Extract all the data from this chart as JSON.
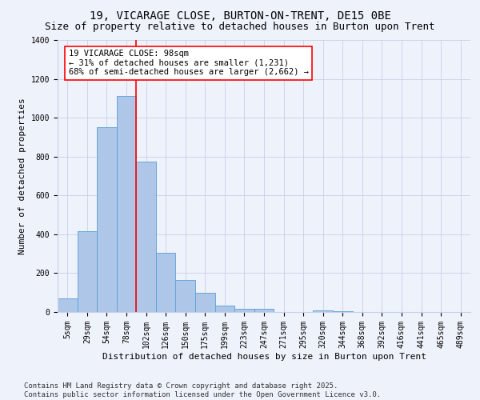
{
  "title1": "19, VICARAGE CLOSE, BURTON-ON-TRENT, DE15 0BE",
  "title2": "Size of property relative to detached houses in Burton upon Trent",
  "xlabel": "Distribution of detached houses by size in Burton upon Trent",
  "ylabel": "Number of detached properties",
  "categories": [
    "5sqm",
    "29sqm",
    "54sqm",
    "78sqm",
    "102sqm",
    "126sqm",
    "150sqm",
    "175sqm",
    "199sqm",
    "223sqm",
    "247sqm",
    "271sqm",
    "295sqm",
    "320sqm",
    "344sqm",
    "368sqm",
    "392sqm",
    "416sqm",
    "441sqm",
    "465sqm",
    "489sqm"
  ],
  "values": [
    70,
    415,
    950,
    1110,
    775,
    305,
    165,
    100,
    35,
    15,
    15,
    0,
    0,
    10,
    5,
    0,
    0,
    0,
    0,
    0,
    0
  ],
  "bar_color": "#aec6e8",
  "bar_edge_color": "#5a9fd4",
  "vline_color": "red",
  "annotation_text": "19 VICARAGE CLOSE: 98sqm\n← 31% of detached houses are smaller (1,231)\n68% of semi-detached houses are larger (2,662) →",
  "annotation_box_color": "white",
  "annotation_box_edge": "red",
  "ylim": [
    0,
    1400
  ],
  "yticks": [
    0,
    200,
    400,
    600,
    800,
    1000,
    1200,
    1400
  ],
  "bg_color": "#eef2fb",
  "grid_color": "#c8d0e8",
  "footer": "Contains HM Land Registry data © Crown copyright and database right 2025.\nContains public sector information licensed under the Open Government Licence v3.0.",
  "title1_fontsize": 10,
  "title2_fontsize": 9,
  "xlabel_fontsize": 8,
  "ylabel_fontsize": 8,
  "tick_fontsize": 7,
  "annotation_fontsize": 7.5,
  "footer_fontsize": 6.5
}
